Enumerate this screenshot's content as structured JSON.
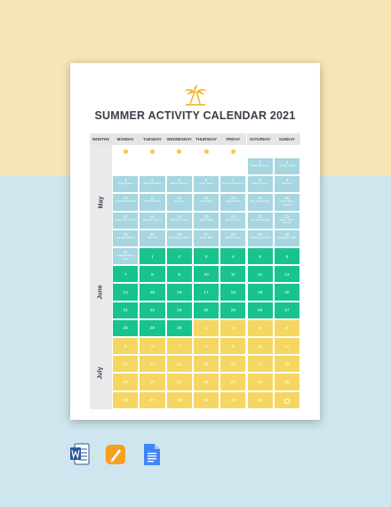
{
  "colors": {
    "bg_top": "#f6e6b8",
    "bg_bottom": "#cfe6ee",
    "blue": "#a7d5e0",
    "green": "#18c38e",
    "yellow": "#f6d662",
    "sun": "#f2c94c"
  },
  "title": "SUMMER ACTIVITY CALENDAR 2021",
  "logo": "palm-trees-icon",
  "headers": [
    "MONTHS",
    "MONDAY",
    "TUESDAY",
    "WEDNESDAY",
    "THURSDAY",
    "FRIDAY",
    "SATURDAY",
    "SUNDAY"
  ],
  "months": [
    "May",
    "June",
    "July"
  ],
  "sun_columns": [
    0,
    1,
    2,
    3,
    4
  ],
  "weeks": [
    [
      null,
      null,
      null,
      null,
      null,
      {
        "d": "1",
        "a": "Water Balloons",
        "c": "blue"
      },
      {
        "d": "2",
        "a": "Jungle Trails",
        "c": "blue"
      }
    ],
    [
      {
        "d": "3",
        "a": "Soap Boats",
        "c": "blue"
      },
      {
        "d": "4",
        "a": "Bubble Bottles",
        "c": "blue"
      },
      {
        "d": "5",
        "a": "Board Painting",
        "c": "blue"
      },
      {
        "d": "6",
        "a": "Soap Foam",
        "c": "blue"
      },
      {
        "d": "7",
        "a": "Rainbow Painting",
        "c": "blue"
      },
      {
        "d": "8",
        "a": "Water Sports",
        "c": "blue"
      },
      {
        "d": "9",
        "a": "Mud Pie",
        "c": "blue"
      }
    ],
    [
      {
        "d": "10",
        "a": "Coin Sandcastles",
        "c": "blue"
      },
      {
        "d": "11",
        "a": "Hunt Bubbles",
        "c": "blue"
      },
      {
        "d": "12",
        "a": "Tie Dye",
        "c": "blue"
      },
      {
        "d": "13",
        "a": "Color Mist",
        "c": "blue"
      },
      {
        "d": "14",
        "a": "Paper Boats",
        "c": "blue"
      },
      {
        "d": "15",
        "a": "Kite Flying Party",
        "c": "blue"
      },
      {
        "d": "16",
        "a": "Solar Wind Chimes",
        "c": "blue"
      }
    ],
    [
      {
        "d": "17",
        "a": "Squirt Gun Paint",
        "c": "blue"
      },
      {
        "d": "18",
        "a": "Balloon Games",
        "c": "blue"
      },
      {
        "d": "19",
        "a": "Painting Rocks",
        "c": "blue"
      },
      {
        "d": "20",
        "a": "Water Wall",
        "c": "blue"
      },
      {
        "d": "21",
        "a": "Nature Hunt",
        "c": "blue"
      },
      {
        "d": "22",
        "a": "Ice Cube Bread",
        "c": "blue"
      },
      {
        "d": "23",
        "a": "Paper Plate Wreath",
        "c": "blue"
      }
    ],
    [
      {
        "d": "24",
        "a": "Swing Painting",
        "c": "blue"
      },
      {
        "d": "25",
        "a": "Sand Art",
        "c": "blue"
      },
      {
        "d": "26",
        "a": "Painting Noodles",
        "c": "blue"
      },
      {
        "d": "27",
        "a": "Water Ball",
        "c": "blue"
      },
      {
        "d": "28",
        "a": "Marble Wave",
        "c": "blue"
      },
      {
        "d": "29",
        "a": "Colored Ice Pins",
        "c": "blue"
      },
      {
        "d": "30",
        "a": "Sidewalk Chalk",
        "c": "blue"
      }
    ],
    [
      {
        "d": "31",
        "a": "Sidewalk Paint Race",
        "c": "blue"
      },
      {
        "d": "1",
        "a": "",
        "c": "green"
      },
      {
        "d": "2",
        "a": "",
        "c": "green"
      },
      {
        "d": "3",
        "a": "",
        "c": "green"
      },
      {
        "d": "4",
        "a": "",
        "c": "green"
      },
      {
        "d": "5",
        "a": "",
        "c": "green"
      },
      {
        "d": "6",
        "a": "",
        "c": "green"
      }
    ],
    [
      {
        "d": "7",
        "a": "",
        "c": "green"
      },
      {
        "d": "8",
        "a": "",
        "c": "green"
      },
      {
        "d": "9",
        "a": "",
        "c": "green"
      },
      {
        "d": "10",
        "a": "",
        "c": "green"
      },
      {
        "d": "11",
        "a": "",
        "c": "green"
      },
      {
        "d": "12",
        "a": "",
        "c": "green"
      },
      {
        "d": "13",
        "a": "",
        "c": "green"
      }
    ],
    [
      {
        "d": "14",
        "a": "",
        "c": "green"
      },
      {
        "d": "15",
        "a": "",
        "c": "green"
      },
      {
        "d": "16",
        "a": "",
        "c": "green"
      },
      {
        "d": "17",
        "a": "",
        "c": "green"
      },
      {
        "d": "18",
        "a": "",
        "c": "green"
      },
      {
        "d": "19",
        "a": "",
        "c": "green"
      },
      {
        "d": "20",
        "a": "",
        "c": "green"
      }
    ],
    [
      {
        "d": "21",
        "a": "",
        "c": "green"
      },
      {
        "d": "22",
        "a": "",
        "c": "green"
      },
      {
        "d": "23",
        "a": "",
        "c": "green"
      },
      {
        "d": "24",
        "a": "",
        "c": "green"
      },
      {
        "d": "25",
        "a": "",
        "c": "green"
      },
      {
        "d": "26",
        "a": "",
        "c": "green"
      },
      {
        "d": "27",
        "a": "",
        "c": "green"
      }
    ],
    [
      {
        "d": "28",
        "a": "",
        "c": "green"
      },
      {
        "d": "29",
        "a": "",
        "c": "green"
      },
      {
        "d": "30",
        "a": "",
        "c": "green"
      },
      {
        "d": "1",
        "a": "",
        "c": "yellow"
      },
      {
        "d": "2",
        "a": "",
        "c": "yellow"
      },
      {
        "d": "3",
        "a": "",
        "c": "yellow"
      },
      {
        "d": "4",
        "a": "",
        "c": "yellow"
      }
    ],
    [
      {
        "d": "5",
        "a": "",
        "c": "yellow"
      },
      {
        "d": "6",
        "a": "",
        "c": "yellow"
      },
      {
        "d": "7",
        "a": "",
        "c": "yellow"
      },
      {
        "d": "8",
        "a": "",
        "c": "yellow"
      },
      {
        "d": "9",
        "a": "",
        "c": "yellow"
      },
      {
        "d": "10",
        "a": "",
        "c": "yellow"
      },
      {
        "d": "11",
        "a": "",
        "c": "yellow"
      }
    ],
    [
      {
        "d": "12",
        "a": "",
        "c": "yellow"
      },
      {
        "d": "13",
        "a": "",
        "c": "yellow"
      },
      {
        "d": "14",
        "a": "",
        "c": "yellow"
      },
      {
        "d": "15",
        "a": "",
        "c": "yellow"
      },
      {
        "d": "16",
        "a": "",
        "c": "yellow"
      },
      {
        "d": "17",
        "a": "",
        "c": "yellow"
      },
      {
        "d": "18",
        "a": "",
        "c": "yellow"
      }
    ],
    [
      {
        "d": "19",
        "a": "",
        "c": "yellow"
      },
      {
        "d": "20",
        "a": "",
        "c": "yellow"
      },
      {
        "d": "21",
        "a": "",
        "c": "yellow"
      },
      {
        "d": "22",
        "a": "",
        "c": "yellow"
      },
      {
        "d": "23",
        "a": "",
        "c": "yellow"
      },
      {
        "d": "24",
        "a": "",
        "c": "yellow"
      },
      {
        "d": "25",
        "a": "",
        "c": "yellow"
      }
    ],
    [
      {
        "d": "26",
        "a": "",
        "c": "yellow"
      },
      {
        "d": "27",
        "a": "",
        "c": "yellow"
      },
      {
        "d": "28",
        "a": "",
        "c": "yellow"
      },
      {
        "d": "29",
        "a": "",
        "c": "yellow"
      },
      {
        "d": "30",
        "a": "",
        "c": "yellow"
      },
      {
        "d": "31",
        "a": "",
        "c": "yellow"
      },
      {
        "d": "",
        "a": "",
        "c": "yellow",
        "icon": "circle-icon"
      }
    ]
  ],
  "app_icons": [
    "word-icon",
    "pages-icon",
    "google-docs-icon"
  ]
}
